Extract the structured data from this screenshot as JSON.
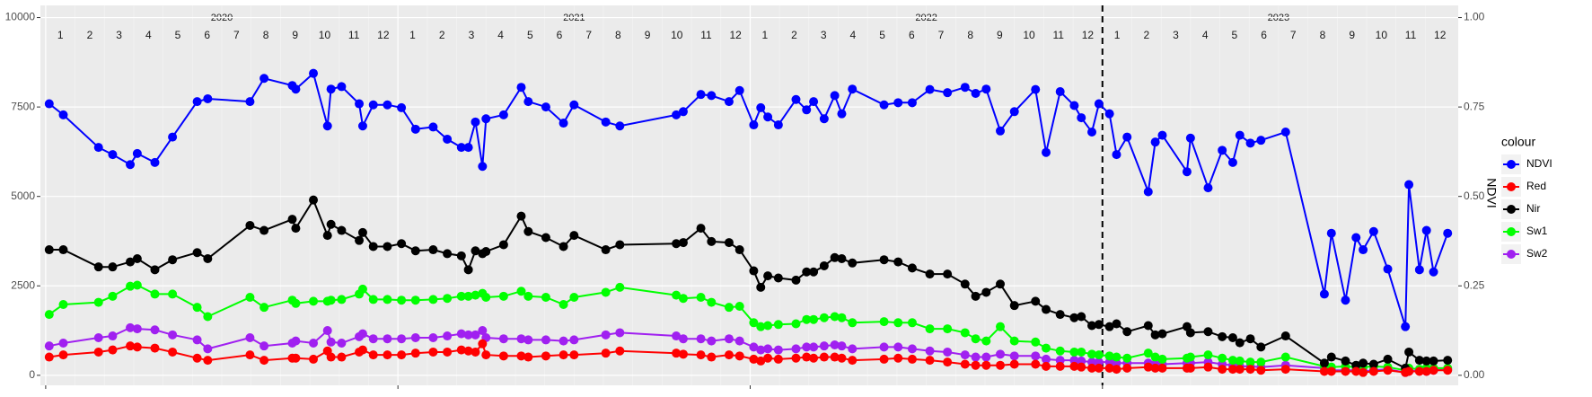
{
  "chart_data": {
    "type": "line",
    "x": [
      2020.01,
      2020.05,
      2020.15,
      2020.19,
      2020.24,
      2020.26,
      2020.31,
      2020.36,
      2020.43,
      2020.46,
      2020.58,
      2020.62,
      2020.7,
      2020.71,
      2020.76,
      2020.8,
      2020.81,
      2020.84,
      2020.89,
      2020.9,
      2020.93,
      2020.97,
      2021.01,
      2021.05,
      2021.1,
      2021.14,
      2021.18,
      2021.2,
      2021.22,
      2021.24,
      2021.25,
      2021.3,
      2021.35,
      2021.37,
      2021.42,
      2021.47,
      2021.5,
      2021.59,
      2021.63,
      2021.79,
      2021.81,
      2021.86,
      2021.89,
      2021.94,
      2021.97,
      2022.01,
      2022.03,
      2022.05,
      2022.08,
      2022.13,
      2022.16,
      2022.18,
      2022.21,
      2022.24,
      2022.26,
      2022.29,
      2022.38,
      2022.42,
      2022.46,
      2022.51,
      2022.56,
      2022.61,
      2022.64,
      2022.67,
      2022.71,
      2022.75,
      2022.81,
      2022.84,
      2022.88,
      2022.92,
      2022.94,
      2022.97,
      2022.99,
      2023.02,
      2023.04,
      2023.07,
      2023.13,
      2023.15,
      2023.17,
      2023.24,
      2023.25,
      2023.3,
      2023.34,
      2023.37,
      2023.39,
      2023.42,
      2023.45,
      2023.52,
      2023.63,
      2023.65,
      2023.69,
      2023.72,
      2023.74,
      2023.77,
      2023.81,
      2023.86,
      2023.87,
      2023.9,
      2023.92,
      2023.94,
      2023.98
    ],
    "series": [
      {
        "name": "NDVI",
        "color": "#0000ff",
        "axis": "y2",
        "values": [
          0.759,
          0.728,
          0.637,
          0.617,
          0.589,
          0.62,
          0.595,
          0.666,
          0.765,
          0.773,
          0.765,
          0.83,
          0.81,
          0.8,
          0.844,
          0.697,
          0.8,
          0.807,
          0.759,
          0.697,
          0.756,
          0.756,
          0.748,
          0.688,
          0.694,
          0.66,
          0.637,
          0.637,
          0.708,
          0.584,
          0.717,
          0.728,
          0.805,
          0.765,
          0.75,
          0.705,
          0.756,
          0.708,
          0.697,
          0.728,
          0.737,
          0.785,
          0.782,
          0.765,
          0.796,
          0.7,
          0.748,
          0.722,
          0.7,
          0.771,
          0.742,
          0.765,
          0.717,
          0.782,
          0.731,
          0.8,
          0.756,
          0.762,
          0.762,
          0.799,
          0.79,
          0.805,
          0.788,
          0.8,
          0.683,
          0.737,
          0.799,
          0.623,
          0.793,
          0.754,
          0.72,
          0.68,
          0.759,
          0.731,
          0.617,
          0.666,
          0.513,
          0.652,
          0.671,
          0.569,
          0.663,
          0.524,
          0.629,
          0.595,
          0.671,
          0.649,
          0.657,
          0.68,
          0.227,
          0.397,
          0.21,
          0.385,
          0.351,
          0.402,
          0.297,
          0.136,
          0.533,
          0.295,
          0.405,
          0.289,
          0.397
        ]
      },
      {
        "name": "Red",
        "color": "#ff0000",
        "values": [
          510,
          570,
          650,
          710,
          820,
          790,
          760,
          650,
          480,
          420,
          570,
          420,
          480,
          480,
          450,
          680,
          510,
          510,
          650,
          710,
          570,
          570,
          570,
          620,
          650,
          650,
          710,
          680,
          650,
          880,
          570,
          540,
          540,
          510,
          540,
          570,
          570,
          620,
          680,
          620,
          590,
          570,
          510,
          570,
          540,
          450,
          400,
          480,
          450,
          480,
          510,
          480,
          510,
          510,
          480,
          420,
          450,
          480,
          450,
          420,
          370,
          310,
          280,
          280,
          280,
          310,
          310,
          250,
          250,
          250,
          230,
          200,
          200,
          200,
          170,
          200,
          230,
          200,
          200,
          200,
          200,
          230,
          170,
          170,
          170,
          170,
          140,
          170,
          110,
          110,
          110,
          110,
          80,
          110,
          140,
          80,
          110,
          110,
          110,
          140,
          140
        ]
      },
      {
        "name": "Nir",
        "color": "#000000",
        "values": [
          3510,
          3510,
          3030,
          3030,
          3170,
          3260,
          2950,
          3230,
          3430,
          3260,
          4190,
          4050,
          4360,
          4110,
          4900,
          3910,
          4220,
          4050,
          3770,
          3990,
          3600,
          3600,
          3680,
          3480,
          3510,
          3400,
          3340,
          2950,
          3480,
          3400,
          3460,
          3650,
          4450,
          4020,
          3850,
          3600,
          3910,
          3510,
          3650,
          3680,
          3710,
          4110,
          3740,
          3710,
          3510,
          2920,
          2460,
          2780,
          2720,
          2660,
          2890,
          2890,
          3060,
          3290,
          3260,
          3140,
          3230,
          3170,
          3000,
          2830,
          2830,
          2550,
          2210,
          2320,
          2550,
          1950,
          2070,
          1840,
          1700,
          1610,
          1640,
          1390,
          1420,
          1360,
          1440,
          1220,
          1390,
          1130,
          1160,
          1360,
          1190,
          1220,
          1080,
          1050,
          910,
          1020,
          790,
          1100,
          340,
          510,
          400,
          280,
          340,
          310,
          450,
          200,
          650,
          420,
          400,
          400,
          420
        ]
      },
      {
        "name": "Sw1",
        "color": "#00ff00",
        "values": [
          1700,
          1980,
          2040,
          2210,
          2490,
          2520,
          2270,
          2270,
          1900,
          1640,
          2180,
          1900,
          2100,
          2010,
          2070,
          2070,
          2100,
          2120,
          2270,
          2410,
          2120,
          2120,
          2100,
          2100,
          2120,
          2150,
          2210,
          2210,
          2240,
          2290,
          2180,
          2210,
          2350,
          2210,
          2180,
          1980,
          2180,
          2320,
          2460,
          2240,
          2150,
          2180,
          2040,
          1900,
          1930,
          1470,
          1360,
          1390,
          1420,
          1440,
          1560,
          1560,
          1610,
          1640,
          1610,
          1470,
          1500,
          1470,
          1470,
          1300,
          1300,
          1190,
          1020,
          960,
          1360,
          960,
          930,
          760,
          680,
          650,
          650,
          590,
          570,
          540,
          510,
          480,
          620,
          510,
          450,
          480,
          510,
          570,
          480,
          420,
          400,
          370,
          370,
          510,
          250,
          230,
          250,
          230,
          230,
          250,
          230,
          140,
          200,
          170,
          200,
          200,
          200
        ]
      },
      {
        "name": "Sw2",
        "color": "#a020f0",
        "values": [
          820,
          900,
          1050,
          1100,
          1330,
          1300,
          1270,
          1130,
          990,
          740,
          1050,
          820,
          900,
          960,
          900,
          1250,
          930,
          900,
          1080,
          1160,
          1020,
          1020,
          1020,
          1050,
          1050,
          1100,
          1160,
          1130,
          1130,
          1250,
          1050,
          1020,
          1020,
          990,
          990,
          960,
          990,
          1130,
          1190,
          1100,
          1020,
          1020,
          960,
          1020,
          960,
          790,
          710,
          740,
          710,
          740,
          790,
          790,
          820,
          850,
          820,
          740,
          790,
          790,
          740,
          680,
          650,
          570,
          510,
          510,
          590,
          540,
          540,
          450,
          420,
          420,
          400,
          370,
          370,
          370,
          340,
          340,
          340,
          310,
          310,
          340,
          340,
          370,
          310,
          280,
          250,
          250,
          230,
          280,
          200,
          140,
          140,
          140,
          110,
          140,
          170,
          80,
          110,
          140,
          110,
          140,
          170
        ]
      }
    ],
    "xlim": [
      2019.985,
      2024.01
    ],
    "xticks": [
      2020,
      2021,
      2022,
      2023
    ],
    "years": [
      "2020",
      "2021",
      "2022",
      "2023"
    ],
    "months": [
      "1",
      "2",
      "3",
      "4",
      "5",
      "6",
      "7",
      "8",
      "9",
      "10",
      "11",
      "12"
    ],
    "ylim": [
      -280,
      10340
    ],
    "yticks": [
      0,
      2500,
      5000,
      7500,
      10000
    ],
    "y2lim": [
      -0.028,
      1.034
    ],
    "y2ticks": [
      {
        "value": 0,
        "label": "0.00"
      },
      {
        "value": 0.25,
        "label": "0.25"
      },
      {
        "value": 0.5,
        "label": "0.50"
      },
      {
        "value": 0.75,
        "label": "0.75"
      },
      {
        "value": 1,
        "label": "1.00"
      }
    ],
    "y2label": "NDVI",
    "legend_title": "colour",
    "vline": 2023,
    "grid": true
  }
}
